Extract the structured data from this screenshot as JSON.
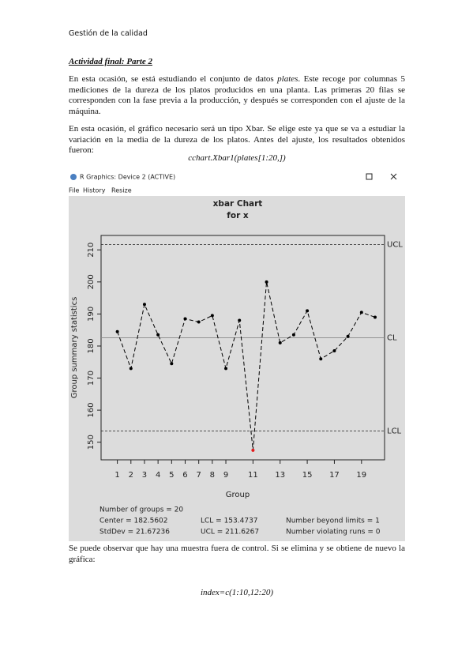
{
  "header": {
    "title": "Gestión de la calidad"
  },
  "heading": "Actividad final: Parte 2",
  "paragraphs": [
    {
      "parts": [
        "En esta ocasión, se está estudiando el conjunto de datos ",
        "plates",
        ". Este recoge por columnas 5 mediciones de la dureza de los platos producidos en una planta. Las primeras 20 filas se corresponden con la fase previa a la producción, y después se corresponden con el ajuste de la máquina."
      ]
    },
    {
      "parts": [
        "En esta ocasión, el gráfico necesario será un tipo Xbar. Se elige este ya que se va a estudiar la variación en la media de la dureza de los platos. Antes del ajuste, los resultados obtenidos fueron:"
      ]
    }
  ],
  "code_1": "cchart.Xbar1(plates[1:20,])",
  "window": {
    "title": "R Graphics: Device 2 (ACTIVE)",
    "menu": [
      "File",
      "History",
      "Resize"
    ]
  },
  "chart_data": {
    "type": "line",
    "title": "xbar Chart",
    "subtitle": "for x",
    "x_label": "Group",
    "y_label": "Group summary statistics",
    "x": [
      1,
      2,
      3,
      4,
      5,
      6,
      7,
      8,
      9,
      10,
      11,
      12,
      13,
      14,
      15,
      16,
      17,
      18,
      19,
      20
    ],
    "values": [
      184.5,
      173,
      193,
      183.5,
      174.5,
      188.5,
      187.5,
      189.5,
      173,
      188,
      147.5,
      200,
      181,
      183.5,
      191,
      176,
      178.5,
      183,
      190.5,
      189
    ],
    "color": "#000000",
    "violation_color": "#e31a1c",
    "xlim": [
      -0.2,
      20.7
    ],
    "xticks": [
      1,
      2,
      3,
      4,
      5,
      6,
      7,
      8,
      9,
      11,
      13,
      15,
      17,
      19
    ],
    "ylim": [
      144.5,
      214.5
    ],
    "yticks": [
      150,
      160,
      170,
      180,
      190,
      200,
      210
    ],
    "limit_labels": {
      "ucl": "UCL",
      "cl": "CL",
      "lcl": "LCL"
    },
    "stats": {
      "groups": {
        "value": 20,
        "label": "Number of groups = 20"
      },
      "center": {
        "value": 182.5602,
        "label": "Center = 182.5602"
      },
      "stddev": {
        "value": 21.67236,
        "label": "StdDev = 21.67236"
      },
      "lcl": {
        "value": 153.4737,
        "label": "LCL = 153.4737"
      },
      "ucl": {
        "value": 211.6267,
        "label": "UCL = 211.6267"
      },
      "beyond": {
        "value": 1,
        "label": "Number beyond limits = 1"
      },
      "violating": {
        "value": 0,
        "label": "Number violating runs = 0"
      }
    }
  },
  "paragraph_3": "Se puede observar que hay una muestra fuera de control. Si se elimina y se obtiene de nuevo la gráfica:",
  "code_2": "index=c(1:10,12:20)"
}
